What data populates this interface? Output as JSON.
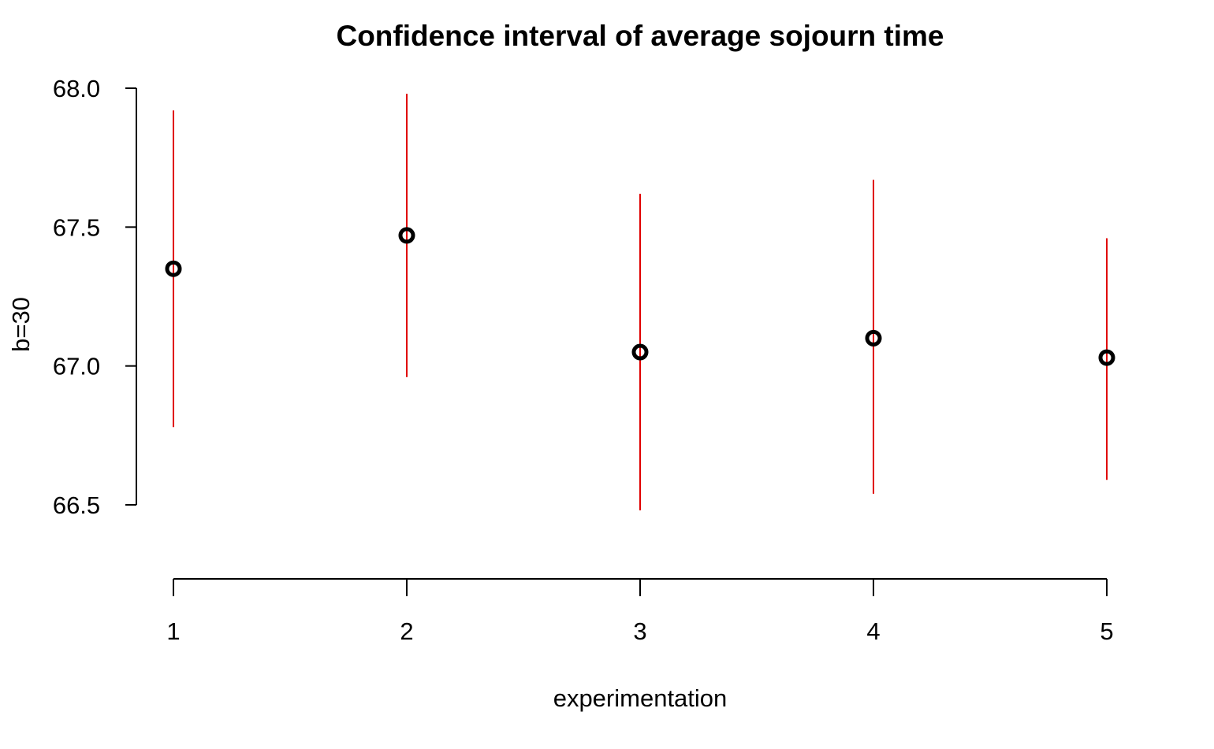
{
  "chart_data": {
    "type": "scatter",
    "title": "Confidence interval of average sojourn time",
    "xlabel": "experimentation",
    "ylabel": "b=30",
    "x_ticks": [
      "1",
      "2",
      "3",
      "4",
      "5"
    ],
    "y_ticks": [
      "66.5",
      "67.0",
      "67.5",
      "68.0"
    ],
    "xlim": [
      1,
      5
    ],
    "ylim": [
      66.5,
      68.0
    ],
    "grid": false,
    "point_color": "#000000",
    "interval_color": "#e00000",
    "points": [
      {
        "x": 1,
        "y": 67.35,
        "lower": 66.78,
        "upper": 67.92
      },
      {
        "x": 2,
        "y": 67.47,
        "lower": 66.96,
        "upper": 67.98
      },
      {
        "x": 3,
        "y": 67.05,
        "lower": 66.48,
        "upper": 67.62
      },
      {
        "x": 4,
        "y": 67.1,
        "lower": 66.54,
        "upper": 67.67
      },
      {
        "x": 5,
        "y": 67.03,
        "lower": 66.59,
        "upper": 67.46
      }
    ]
  }
}
